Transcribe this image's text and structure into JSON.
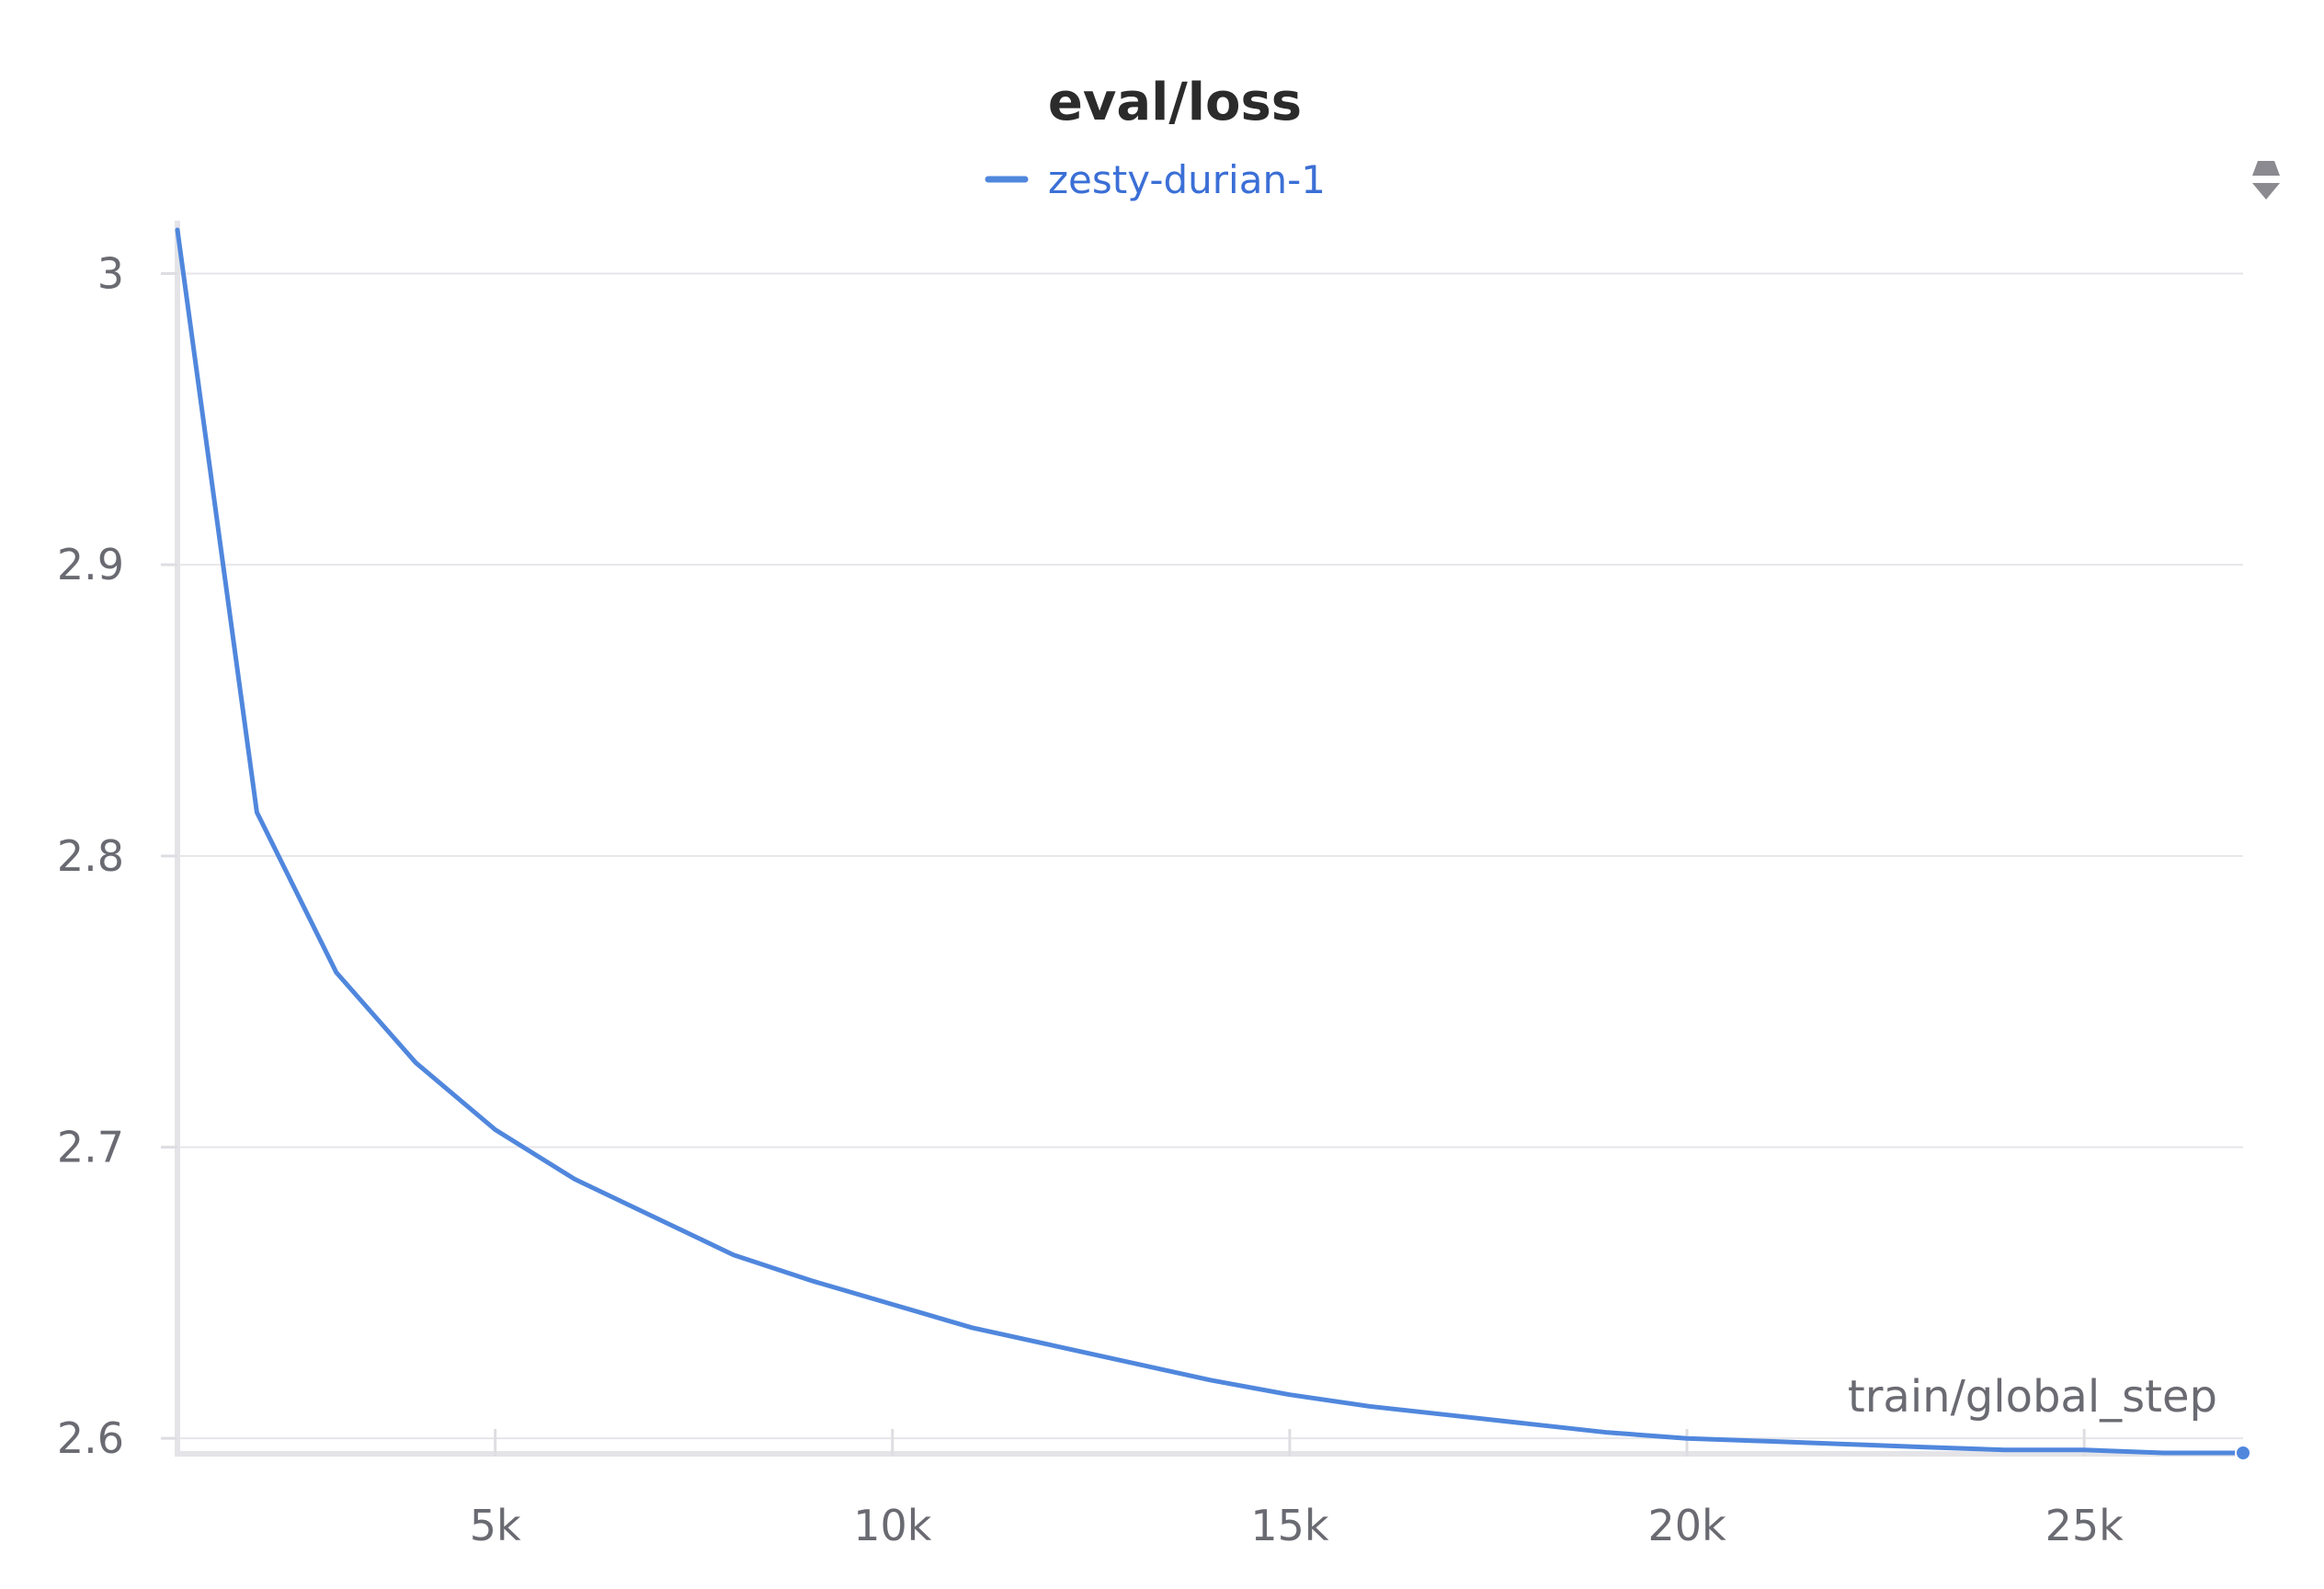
{
  "chart_data": {
    "type": "line",
    "title": "eval/loss",
    "xlabel": "train/global_step",
    "ylabel": "",
    "xlim": [
      1000,
      27000
    ],
    "ylim": [
      2.595,
      3.015
    ],
    "x_ticks": [
      {
        "value": 5000,
        "label": "5k"
      },
      {
        "value": 10000,
        "label": "10k"
      },
      {
        "value": 15000,
        "label": "15k"
      },
      {
        "value": 20000,
        "label": "20k"
      },
      {
        "value": 25000,
        "label": "25k"
      }
    ],
    "y_ticks": [
      {
        "value": 2.6,
        "label": "2.6"
      },
      {
        "value": 2.7,
        "label": "2.7"
      },
      {
        "value": 2.8,
        "label": "2.8"
      },
      {
        "value": 2.9,
        "label": "2.9"
      },
      {
        "value": 3.0,
        "label": "3"
      }
    ],
    "grid": true,
    "legend_position": "top-center",
    "series": [
      {
        "name": "zesty-durian-1",
        "color": "#5087dd",
        "x": [
          1000,
          2000,
          3000,
          4000,
          5000,
          6000,
          7000,
          8000,
          9000,
          10000,
          11000,
          12000,
          13000,
          14000,
          15000,
          16000,
          17000,
          18000,
          19000,
          20000,
          21000,
          22000,
          23000,
          24000,
          25000,
          26000,
          27000
        ],
        "y": [
          3.015,
          2.815,
          2.76,
          2.729,
          2.706,
          2.689,
          2.676,
          2.663,
          2.654,
          2.646,
          2.638,
          2.632,
          2.626,
          2.62,
          2.615,
          2.611,
          2.608,
          2.605,
          2.602,
          2.6,
          2.599,
          2.598,
          2.597,
          2.596,
          2.596,
          2.595,
          2.595
        ]
      }
    ]
  },
  "toolbar": {
    "icon": "drag-handle-icon"
  }
}
